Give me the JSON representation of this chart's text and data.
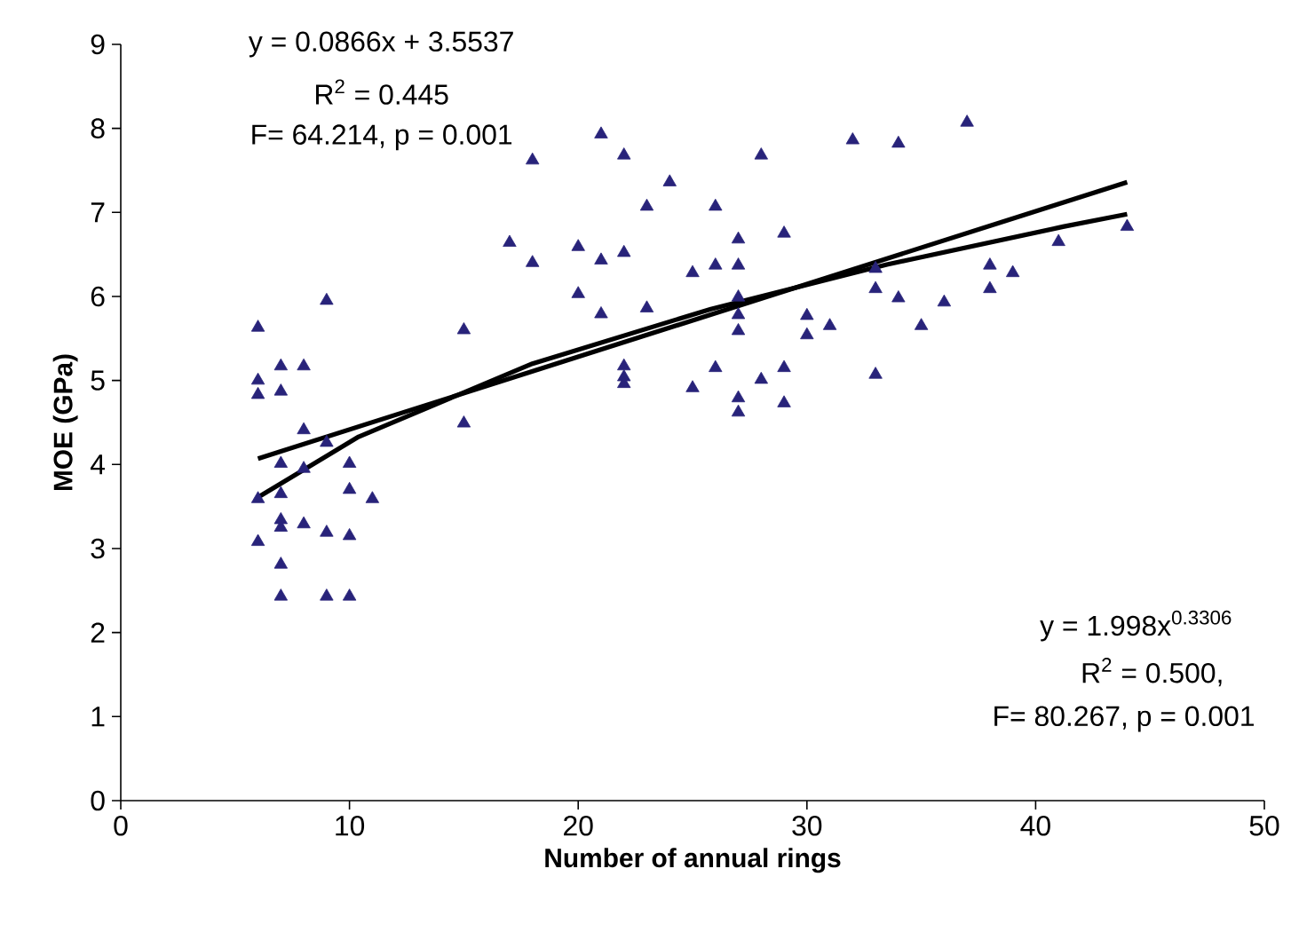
{
  "chart_data": {
    "type": "scatter",
    "xlabel": "Number of annual rings",
    "ylabel": "MOE (GPa)",
    "xlim": [
      0,
      50
    ],
    "ylim": [
      0,
      9
    ],
    "xticks": [
      0,
      10,
      20,
      30,
      40,
      50
    ],
    "yticks": [
      0,
      1,
      2,
      3,
      4,
      5,
      6,
      7,
      8,
      9
    ],
    "grid": false,
    "marker": "triangle",
    "series": [
      {
        "color": "#28237a",
        "x": [
          6,
          6,
          6,
          6,
          6,
          7,
          7,
          7,
          7,
          7,
          7,
          7,
          7,
          8,
          8,
          8,
          8,
          9,
          9,
          9,
          9,
          10,
          10,
          10,
          10,
          11,
          15,
          15,
          17,
          18,
          18,
          20,
          20,
          21,
          21,
          21,
          22,
          22,
          22,
          22,
          22,
          23,
          23,
          24,
          25,
          25,
          26,
          26,
          26,
          27,
          27,
          27,
          27,
          27,
          27,
          27,
          28,
          28,
          29,
          29,
          29,
          30,
          30,
          31,
          32,
          33,
          33,
          33,
          34,
          34,
          35,
          36,
          37,
          38,
          38,
          39,
          41,
          44
        ],
        "values": [
          5.63,
          5.0,
          4.83,
          3.59,
          3.08,
          5.17,
          4.87,
          4.01,
          3.65,
          3.34,
          3.25,
          2.81,
          2.43,
          5.17,
          4.41,
          3.95,
          3.29,
          5.95,
          4.26,
          3.19,
          2.43,
          4.01,
          3.7,
          3.15,
          2.43,
          3.59,
          5.6,
          4.49,
          6.64,
          7.62,
          6.4,
          6.59,
          6.03,
          7.93,
          6.43,
          5.79,
          7.68,
          6.52,
          5.17,
          5.04,
          4.96,
          7.07,
          5.86,
          7.36,
          6.28,
          4.91,
          7.07,
          6.37,
          5.15,
          6.68,
          6.37,
          5.99,
          5.78,
          5.59,
          4.79,
          4.62,
          7.68,
          5.01,
          6.75,
          5.15,
          4.73,
          5.77,
          5.54,
          5.65,
          7.86,
          6.33,
          6.09,
          5.07,
          7.82,
          5.98,
          5.65,
          5.93,
          8.07,
          6.37,
          6.09,
          6.28,
          6.65,
          6.83
        ]
      },
      {
        "type": "line",
        "color": "#000000",
        "marker": "none",
        "x": [
          6,
          44
        ],
        "values": [
          4.07,
          7.36
        ]
      },
      {
        "type": "line",
        "color": "#000000",
        "marker": "none",
        "x": [
          6,
          10.4,
          18,
          25.8,
          33.5,
          41.2,
          44
        ],
        "values": [
          3.61,
          4.33,
          5.2,
          5.85,
          6.38,
          6.83,
          6.98
        ]
      }
    ],
    "annotations": [
      "y = 0.0866x + 3.5537",
      "R$^{2}$ = 0.445",
      "F= 64.214, p = 0.001",
      "y = 1.998x$^{0.3306}$",
      "R$^{2}$ = 0.500,",
      "F= 80.267, p = 0.001"
    ]
  }
}
